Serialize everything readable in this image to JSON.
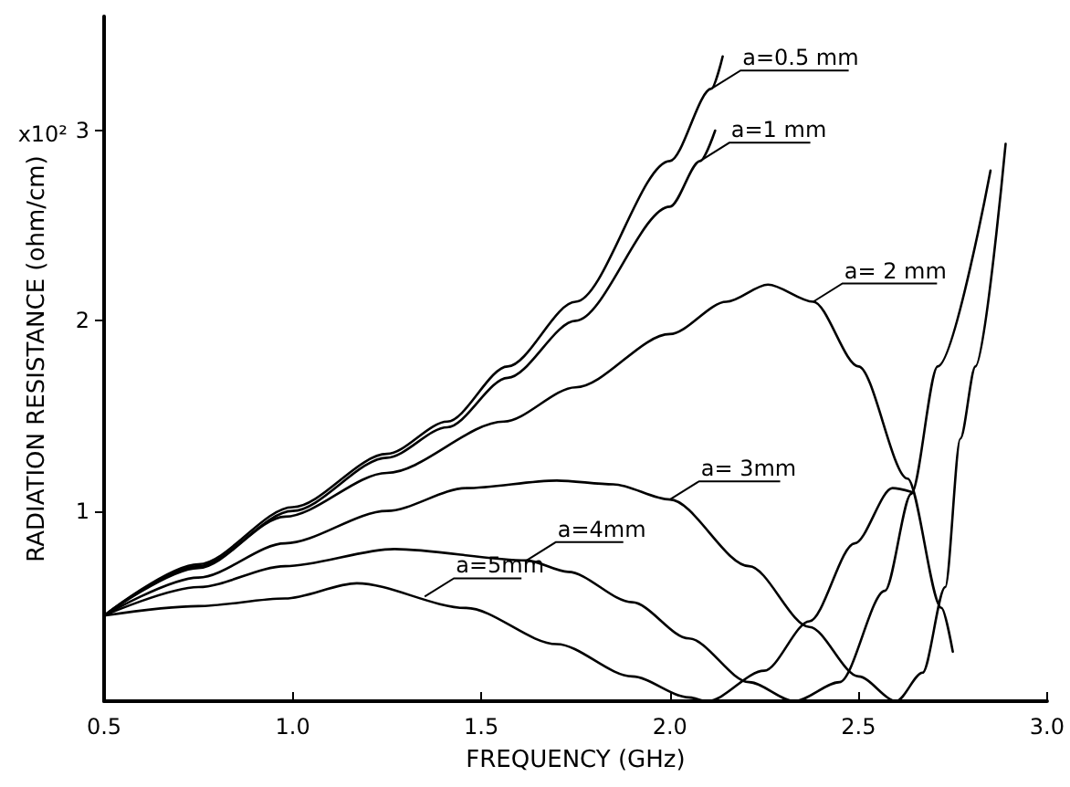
{
  "chart_data": {
    "type": "line",
    "xlabel": "FREQUENCY (GHz)",
    "ylabel": "RADIATION RESISTANCE (ohm/cm)",
    "xlim": [
      0.5,
      3.0
    ],
    "xticks": [
      {
        "value": 0.5,
        "label": "0.5"
      },
      {
        "value": 1.0,
        "label": "1.0"
      },
      {
        "value": 1.5,
        "label": "1.5"
      },
      {
        "value": 2.0,
        "label": "2.0"
      },
      {
        "value": 2.5,
        "label": "2.5"
      },
      {
        "value": 3.0,
        "label": "3.0"
      }
    ],
    "ylim": [
      0,
      3.6
    ],
    "yticks": [
      1,
      2,
      3
    ],
    "marker": "none",
    "line_style": "solid",
    "annotations": [
      "x10²",
      {
        "text": "a=0.5 mm",
        "x": 2.11,
        "y": 3.22
      },
      {
        "text": "a=1 mm",
        "x": 2.08,
        "y": 2.84
      },
      {
        "text": "a= 2 mm",
        "x": 2.38,
        "y": 2.1
      },
      {
        "text": "a= 3mm",
        "x": 2.0,
        "y": 1.06
      },
      {
        "text": "a=4mm",
        "x": 1.62,
        "y": 0.74
      },
      {
        "text": "a=5mm",
        "x": 1.35,
        "y": 0.55
      }
    ],
    "series": [
      {
        "color": "#000000",
        "x": [
          0.5,
          0.75,
          1.0,
          1.25,
          1.41,
          1.57,
          1.75,
          2.0,
          2.11,
          2.14
        ],
        "values": [
          0.45,
          0.72,
          1.02,
          1.3,
          1.47,
          1.76,
          2.1,
          2.84,
          3.22,
          3.39
        ]
      },
      {
        "color": "#000000",
        "x": [
          0.5,
          0.75,
          1.0,
          1.25,
          1.41,
          1.57,
          1.75,
          2.0,
          2.08,
          2.12
        ],
        "values": [
          0.45,
          0.71,
          1.0,
          1.28,
          1.44,
          1.7,
          2.0,
          2.6,
          2.84,
          3.0
        ]
      },
      {
        "color": "#000000",
        "x": [
          0.5,
          0.75,
          0.98,
          1.25,
          1.56,
          1.75,
          2.0,
          2.15,
          2.26,
          2.38,
          2.5,
          2.63,
          2.72,
          2.75
        ],
        "values": [
          0.45,
          0.7,
          0.97,
          1.2,
          1.47,
          1.65,
          1.93,
          2.1,
          2.19,
          2.1,
          1.76,
          1.17,
          0.49,
          0.26
        ]
      },
      {
        "color": "#000000",
        "x": [
          0.5,
          0.75,
          0.98,
          1.25,
          1.46,
          1.7,
          1.85,
          2.0,
          2.21,
          2.37,
          2.5,
          2.6,
          2.67,
          2.73,
          2.77,
          2.81,
          2.89
        ],
        "values": [
          0.45,
          0.65,
          0.83,
          1.0,
          1.12,
          1.16,
          1.14,
          1.06,
          0.71,
          0.39,
          0.13,
          0,
          0.15,
          0.6,
          1.38,
          1.76,
          2.93
        ]
      },
      {
        "color": "#000000",
        "x": [
          0.5,
          0.75,
          0.98,
          1.27,
          1.62,
          1.73,
          1.9,
          2.05,
          2.21,
          2.33,
          2.45,
          2.57,
          2.64,
          2.71,
          2.85
        ],
        "values": [
          0.45,
          0.6,
          0.71,
          0.8,
          0.74,
          0.68,
          0.52,
          0.33,
          0.1,
          0,
          0.1,
          0.58,
          1.09,
          1.76,
          2.79
        ]
      },
      {
        "color": "#000000",
        "x": [
          0.5,
          0.75,
          0.98,
          1.17,
          1.46,
          1.7,
          1.9,
          2.05,
          2.1,
          2.25,
          2.37,
          2.49,
          2.59,
          2.64
        ],
        "values": [
          0.45,
          0.5,
          0.54,
          0.62,
          0.49,
          0.3,
          0.13,
          0.02,
          0,
          0.16,
          0.42,
          0.83,
          1.12,
          1.1
        ]
      }
    ]
  }
}
